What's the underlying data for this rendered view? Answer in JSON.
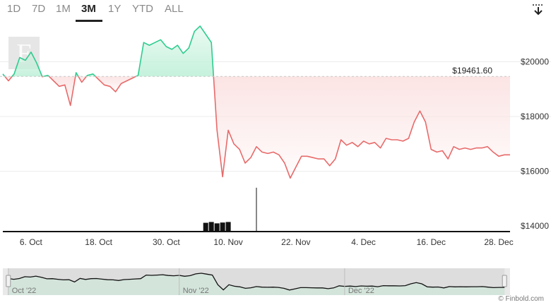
{
  "range_tabs": [
    {
      "label": "1D",
      "active": false
    },
    {
      "label": "7D",
      "active": false
    },
    {
      "label": "1M",
      "active": false
    },
    {
      "label": "3M",
      "active": true
    },
    {
      "label": "1Y",
      "active": false
    },
    {
      "label": "YTD",
      "active": false
    },
    {
      "label": "ALL",
      "active": false
    }
  ],
  "toolbar": {
    "download_icon": "download-icon"
  },
  "logo": {
    "text": "F"
  },
  "credit": {
    "text": "© Finbold.com"
  },
  "colors": {
    "above": "#2ecc8f",
    "below": "#e86a6a",
    "above_fill": "#bff0d8",
    "below_fill": "#fbe1e1",
    "volume": "#111111",
    "navigator_line": "#111111",
    "navigator_bg": "#e9e9e9",
    "navigator_selected": "#d4d4d4"
  },
  "chart_data": {
    "type": "line",
    "title": "",
    "xlabel": "",
    "ylabel": "",
    "reference_label": "$19461.60",
    "reference_value": 19461.6,
    "ylim": [
      13800,
      21400
    ],
    "yticks": [
      14000,
      16000,
      18000,
      20000
    ],
    "ytick_labels": [
      "$14000",
      "$16000",
      "$18000",
      "$20000"
    ],
    "xlim": [
      "2022-10-01",
      "2022-12-30"
    ],
    "xticks": [
      "2022-10-06",
      "2022-10-18",
      "2022-10-30",
      "2022-11-10",
      "2022-11-22",
      "2022-12-04",
      "2022-12-16",
      "2022-12-28"
    ],
    "xtick_labels": [
      "6. Oct",
      "18. Oct",
      "30. Oct",
      "10. Nov",
      "22. Nov",
      "4. Dec",
      "16. Dec",
      "28. Dec"
    ],
    "grid": "horizontal",
    "series": [
      {
        "values": [
          [
            "2022-10-01",
            19550
          ],
          [
            "2022-10-02",
            19300
          ],
          [
            "2022-10-03",
            19550
          ],
          [
            "2022-10-04",
            20150
          ],
          [
            "2022-10-05",
            20050
          ],
          [
            "2022-10-06",
            20350
          ],
          [
            "2022-10-07",
            19950
          ],
          [
            "2022-10-08",
            19450
          ],
          [
            "2022-10-09",
            19500
          ],
          [
            "2022-10-10",
            19300
          ],
          [
            "2022-10-11",
            19100
          ],
          [
            "2022-10-12",
            19150
          ],
          [
            "2022-10-13",
            18400
          ],
          [
            "2022-10-14",
            19600
          ],
          [
            "2022-10-15",
            19250
          ],
          [
            "2022-10-16",
            19500
          ],
          [
            "2022-10-17",
            19550
          ],
          [
            "2022-10-18",
            19350
          ],
          [
            "2022-10-19",
            19150
          ],
          [
            "2022-10-20",
            19100
          ],
          [
            "2022-10-21",
            18900
          ],
          [
            "2022-10-22",
            19200
          ],
          [
            "2022-10-23",
            19300
          ],
          [
            "2022-10-24",
            19400
          ],
          [
            "2022-10-25",
            19500
          ],
          [
            "2022-10-26",
            20700
          ],
          [
            "2022-10-27",
            20600
          ],
          [
            "2022-10-28",
            20700
          ],
          [
            "2022-10-29",
            20800
          ],
          [
            "2022-10-30",
            20550
          ],
          [
            "2022-10-31",
            20450
          ],
          [
            "2022-11-01",
            20600
          ],
          [
            "2022-11-02",
            20300
          ],
          [
            "2022-11-03",
            20500
          ],
          [
            "2022-11-04",
            21100
          ],
          [
            "2022-11-05",
            21300
          ],
          [
            "2022-11-06",
            21000
          ],
          [
            "2022-11-07",
            20700
          ],
          [
            "2022-11-08",
            17500
          ],
          [
            "2022-11-09",
            15800
          ],
          [
            "2022-11-10",
            17500
          ],
          [
            "2022-11-11",
            17000
          ],
          [
            "2022-11-12",
            16800
          ],
          [
            "2022-11-13",
            16300
          ],
          [
            "2022-11-14",
            16500
          ],
          [
            "2022-11-15",
            16900
          ],
          [
            "2022-11-16",
            16700
          ],
          [
            "2022-11-17",
            16650
          ],
          [
            "2022-11-18",
            16700
          ],
          [
            "2022-11-19",
            16600
          ],
          [
            "2022-11-20",
            16300
          ],
          [
            "2022-11-21",
            15750
          ],
          [
            "2022-11-22",
            16150
          ],
          [
            "2022-11-23",
            16550
          ],
          [
            "2022-11-24",
            16550
          ],
          [
            "2022-11-25",
            16500
          ],
          [
            "2022-11-26",
            16450
          ],
          [
            "2022-11-27",
            16450
          ],
          [
            "2022-11-28",
            16200
          ],
          [
            "2022-11-29",
            16450
          ],
          [
            "2022-11-30",
            17150
          ],
          [
            "2022-12-01",
            16950
          ],
          [
            "2022-12-02",
            17050
          ],
          [
            "2022-12-03",
            16900
          ],
          [
            "2022-12-04",
            17100
          ],
          [
            "2022-12-05",
            17000
          ],
          [
            "2022-12-06",
            17050
          ],
          [
            "2022-12-07",
            16850
          ],
          [
            "2022-12-08",
            17200
          ],
          [
            "2022-12-09",
            17150
          ],
          [
            "2022-12-10",
            17150
          ],
          [
            "2022-12-11",
            17100
          ],
          [
            "2022-12-12",
            17200
          ],
          [
            "2022-12-13",
            17800
          ],
          [
            "2022-12-14",
            18200
          ],
          [
            "2022-12-15",
            17800
          ],
          [
            "2022-12-16",
            16800
          ],
          [
            "2022-12-17",
            16700
          ],
          [
            "2022-12-18",
            16750
          ],
          [
            "2022-12-19",
            16450
          ],
          [
            "2022-12-20",
            16900
          ],
          [
            "2022-12-21",
            16800
          ],
          [
            "2022-12-22",
            16850
          ],
          [
            "2022-12-23",
            16800
          ],
          [
            "2022-12-24",
            16850
          ],
          [
            "2022-12-25",
            16850
          ],
          [
            "2022-12-26",
            16900
          ],
          [
            "2022-12-27",
            16700
          ],
          [
            "2022-12-28",
            16550
          ],
          [
            "2022-12-29",
            16600
          ],
          [
            "2022-12-30",
            16600
          ]
        ]
      }
    ],
    "volume": [
      [
        "2022-11-06",
        14120
      ],
      [
        "2022-11-07",
        14150
      ],
      [
        "2022-11-08",
        14100
      ],
      [
        "2022-11-09",
        14130
      ],
      [
        "2022-11-10",
        14150
      ],
      [
        "2022-11-15",
        15400
      ]
    ],
    "navigator": {
      "xtick_labels": [
        "Oct '22",
        "Nov '22",
        "Dec '22"
      ],
      "xticks": [
        "2022-10-01",
        "2022-11-01",
        "2022-12-01"
      ],
      "xlim": [
        "2022-09-30",
        "2022-12-31"
      ],
      "selected_range": [
        "2022-10-01",
        "2022-12-30"
      ]
    }
  }
}
